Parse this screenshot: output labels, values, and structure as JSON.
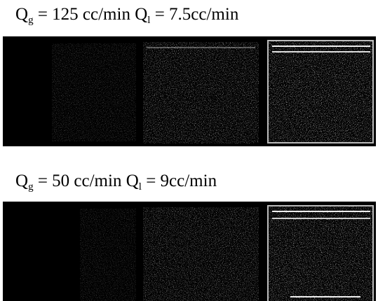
{
  "panels": [
    {
      "gas_symbol": "Q",
      "gas_sub": "g",
      "gas_value": " = 125 cc/min ",
      "liquid_symbol": "Q",
      "liquid_sub": "l",
      "liquid_value": " = 7.5cc/min"
    },
    {
      "gas_symbol": "Q",
      "gas_sub": "g",
      "gas_value": " = 50 cc/min ",
      "liquid_symbol": "Q",
      "liquid_sub": "l",
      "liquid_value": " = 9cc/min"
    }
  ]
}
